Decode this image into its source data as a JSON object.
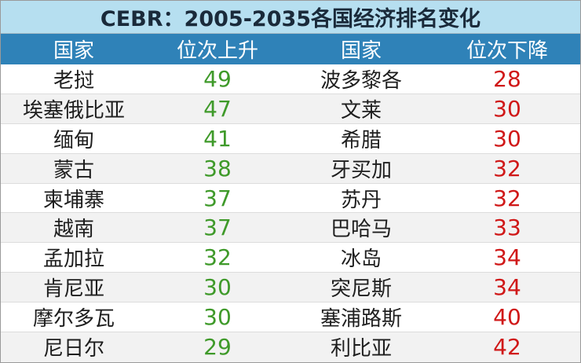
{
  "title": "CEBR：2005-2035各国经济排名变化",
  "headers": {
    "country_left": "国家",
    "rise": "位次上升",
    "country_right": "国家",
    "fall": "位次下降"
  },
  "rows": [
    {
      "up_country": "老挝",
      "up_value": "49",
      "down_country": "波多黎各",
      "down_value": "28"
    },
    {
      "up_country": "埃塞俄比亚",
      "up_value": "47",
      "down_country": "文莱",
      "down_value": "30"
    },
    {
      "up_country": "缅甸",
      "up_value": "41",
      "down_country": "希腊",
      "down_value": "30"
    },
    {
      "up_country": "蒙古",
      "up_value": "38",
      "down_country": "牙买加",
      "down_value": "32"
    },
    {
      "up_country": "柬埔寨",
      "up_value": "37",
      "down_country": "苏丹",
      "down_value": "32"
    },
    {
      "up_country": "越南",
      "up_value": "37",
      "down_country": "巴哈马",
      "down_value": "33"
    },
    {
      "up_country": "孟加拉",
      "up_value": "32",
      "down_country": "冰岛",
      "down_value": "34"
    },
    {
      "up_country": "肯尼亚",
      "up_value": "30",
      "down_country": "突尼斯",
      "down_value": "34"
    },
    {
      "up_country": "摩尔多瓦",
      "up_value": "30",
      "down_country": "塞浦路斯",
      "down_value": "40"
    },
    {
      "up_country": "尼日尔",
      "up_value": "29",
      "down_country": "利比亚",
      "down_value": "42"
    }
  ],
  "colors": {
    "title_bg": "#b6dff0",
    "header_bg": "#2f82b8",
    "rise_value": "#3f9a2a",
    "fall_value": "#d01818"
  }
}
